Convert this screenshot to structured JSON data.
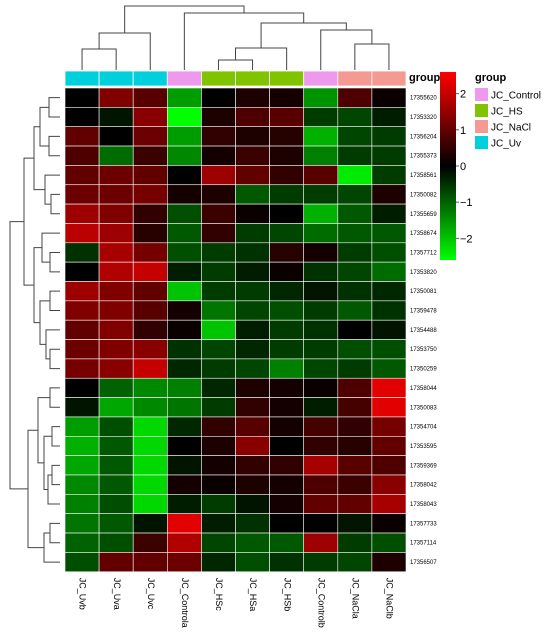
{
  "chart_data": {
    "type": "heatmap",
    "rows": [
      "17355620",
      "17353320",
      "17356204",
      "17355373",
      "17358561",
      "17350082",
      "17355659",
      "17358674",
      "17357712",
      "17353820",
      "17350081",
      "17359478",
      "17354488",
      "17353750",
      "17350259",
      "17358044",
      "17350083",
      "17354704",
      "17353595",
      "17359369",
      "17358042",
      "17358043",
      "17357733",
      "17357114",
      "17356507"
    ],
    "columns": [
      "JC_Uvb",
      "JC_Uva",
      "JC_Uvc",
      "JC_Controla",
      "JC_HSc",
      "JC_HSa",
      "JC_HSb",
      "JC_Controlb",
      "JC_NaCla",
      "JC_NaClb"
    ],
    "column_groups": [
      "JC_Uv",
      "JC_Uv",
      "JC_Uv",
      "JC_Control",
      "JC_HS",
      "JC_HS",
      "JC_HS",
      "JC_Control",
      "JC_NaCl",
      "JC_NaCl"
    ],
    "annotation_title": "group",
    "legend": {
      "title": "group",
      "entries": [
        {
          "name": "JC_Control",
          "color": "#ee99ee"
        },
        {
          "name": "JC_HS",
          "color": "#80c400"
        },
        {
          "name": "JC_NaCl",
          "color": "#f59a92"
        },
        {
          "name": "JC_Uv",
          "color": "#00d0dc"
        }
      ]
    },
    "colorbar": {
      "ticks": [
        2,
        1,
        0,
        -1,
        -2
      ],
      "tick_labels": [
        "2",
        "1",
        "0",
        "−1",
        "−2"
      ],
      "range": [
        -2.6,
        2.6
      ],
      "colors": {
        "low": "#00ff00",
        "mid": "#000000",
        "high": "#ff0000"
      }
    },
    "values": [
      [
        0.0,
        1.3,
        0.9,
        -1.6,
        0.0,
        0.3,
        0.2,
        -1.5,
        0.8,
        0.1
      ],
      [
        0.0,
        -0.2,
        1.4,
        -2.6,
        0.3,
        0.8,
        0.9,
        -0.6,
        -0.7,
        -0.3
      ],
      [
        1.0,
        0.0,
        1.1,
        -1.6,
        0.5,
        0.3,
        0.4,
        -1.8,
        -0.7,
        -0.6
      ],
      [
        0.8,
        -1.1,
        0.6,
        -1.4,
        0.2,
        0.6,
        0.3,
        -1.3,
        -0.6,
        -0.6
      ],
      [
        1.0,
        1.1,
        1.0,
        0.0,
        1.6,
        1.0,
        0.5,
        0.9,
        -2.4,
        -0.6
      ],
      [
        1.1,
        1.1,
        1.2,
        0.2,
        0.3,
        -0.9,
        -0.6,
        -0.6,
        -0.7,
        0.3
      ],
      [
        1.6,
        1.3,
        0.5,
        -0.8,
        0.6,
        0.1,
        0.0,
        -1.8,
        -0.9,
        -0.3
      ],
      [
        1.9,
        1.6,
        0.4,
        -0.9,
        0.5,
        -0.6,
        -0.7,
        -1.1,
        -0.9,
        -0.9
      ],
      [
        -0.5,
        1.7,
        1.2,
        -0.8,
        -0.6,
        -0.5,
        0.4,
        0.2,
        -0.6,
        -0.8
      ],
      [
        0.0,
        1.8,
        2.0,
        -0.3,
        -0.6,
        -0.3,
        0.1,
        -0.5,
        -0.7,
        -1.1
      ],
      [
        1.6,
        1.3,
        1.0,
        -2.0,
        -0.6,
        -0.6,
        -0.4,
        -0.2,
        -0.5,
        -0.4
      ],
      [
        1.3,
        1.3,
        0.9,
        0.2,
        -1.2,
        -0.7,
        -0.8,
        -0.6,
        -0.9,
        -0.5
      ],
      [
        1.0,
        1.3,
        0.5,
        0.1,
        -2.0,
        -0.3,
        -0.6,
        -0.5,
        0.0,
        -0.2
      ],
      [
        1.1,
        1.3,
        1.4,
        -0.5,
        -0.7,
        -0.4,
        -0.6,
        -0.6,
        -0.8,
        -0.8
      ],
      [
        1.2,
        1.4,
        2.0,
        -0.4,
        -0.6,
        -0.7,
        -1.3,
        -0.7,
        -0.6,
        -0.9
      ],
      [
        0.0,
        -1.0,
        -1.4,
        -1.3,
        -0.4,
        0.3,
        0.2,
        0.1,
        0.8,
        2.3
      ],
      [
        -0.2,
        -1.7,
        -1.4,
        -1.2,
        -0.6,
        0.5,
        0.2,
        -0.3,
        0.7,
        2.3
      ],
      [
        -1.6,
        -0.8,
        -2.2,
        -0.4,
        0.5,
        0.9,
        0.2,
        0.7,
        0.5,
        1.2
      ],
      [
        -1.8,
        -0.9,
        -2.2,
        0.0,
        0.3,
        1.4,
        0.0,
        0.5,
        0.4,
        1.0
      ],
      [
        -1.7,
        -0.9,
        -2.2,
        -0.2,
        0.2,
        0.5,
        0.5,
        1.7,
        0.9,
        0.8
      ],
      [
        -1.4,
        -0.9,
        -2.2,
        0.2,
        0.1,
        0.3,
        0.2,
        0.8,
        0.6,
        1.4
      ],
      [
        -1.3,
        -0.8,
        -2.2,
        -0.3,
        -0.6,
        -0.2,
        0.2,
        1.0,
        1.0,
        1.7
      ],
      [
        -1.2,
        -0.9,
        -0.2,
        2.3,
        -0.3,
        -0.5,
        0.0,
        0.0,
        -0.2,
        0.1
      ],
      [
        -1.0,
        -0.8,
        0.6,
        1.8,
        -0.7,
        -0.9,
        -0.9,
        1.6,
        -0.6,
        -0.8
      ],
      [
        -0.8,
        1.0,
        1.0,
        1.1,
        -0.4,
        -0.8,
        -0.5,
        -0.6,
        -0.7,
        0.3
      ]
    ]
  }
}
